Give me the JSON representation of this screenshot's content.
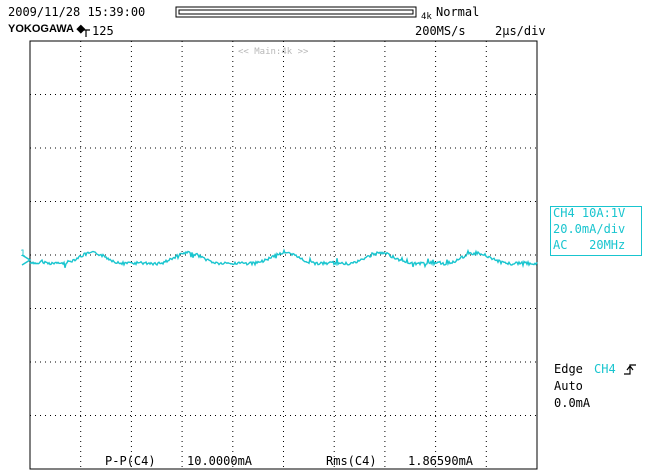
{
  "header": {
    "timestamp": "2009/11/28 15:39:00",
    "brand": "YOKOGAWA",
    "trigger_position": "125",
    "memory_length": "4k",
    "acquisition_mode": "Normal",
    "sample_rate": "200MS/s",
    "time_per_div": "2µs/div"
  },
  "screen": {
    "main_label": "<< Main:4k >>",
    "ground_marker": "1"
  },
  "channel_info": {
    "line1": "CH4 10A:1V",
    "line2": "20.0mA/div",
    "line3": "AC   20MHz"
  },
  "trigger": {
    "type": "Edge",
    "channel": "CH4",
    "mode": "Auto",
    "level": "0.0mA"
  },
  "measurements": {
    "pp_label": "P-P(C4)",
    "pp_value": "10.0000mA",
    "rms_label": "Rms(C4)",
    "rms_value": "1.86590mA"
  },
  "colors": {
    "trace": "#19c5cf",
    "grid": "#000000"
  }
}
